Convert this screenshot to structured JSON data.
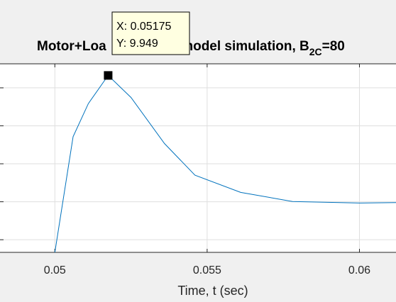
{
  "chart_data": {
    "type": "line",
    "title_main": "Motor+Loa",
    "title_tail": "l model simulation, B",
    "title_sub": "2C",
    "title_end": "=80",
    "xlabel": "Time, t (sec)",
    "ylabel": "",
    "xlim": [
      0.0482,
      0.0612
    ],
    "ylim": [
      9.25,
      9.995
    ],
    "xticks": [
      0.05,
      0.055,
      0.06
    ],
    "xtick_labels": [
      "0.05",
      "0.055",
      "0.06"
    ],
    "y_gridlines": [
      9.3,
      9.45,
      9.6,
      9.75,
      9.9
    ],
    "grid": true,
    "series": [
      {
        "color": "#0072bd",
        "x": [
          0.05,
          0.0506,
          0.0511,
          0.05175,
          0.0525,
          0.0536,
          0.0546,
          0.0561,
          0.0578,
          0.06,
          0.0612
        ],
        "y": [
          9.25,
          9.707,
          9.838,
          9.949,
          9.862,
          9.68,
          9.555,
          9.487,
          9.451,
          9.445,
          9.447
        ]
      }
    ],
    "datatip": {
      "x_text": "X: 0.05175",
      "y_text": "Y: 9.949",
      "x": 0.05175,
      "y": 9.949
    }
  }
}
